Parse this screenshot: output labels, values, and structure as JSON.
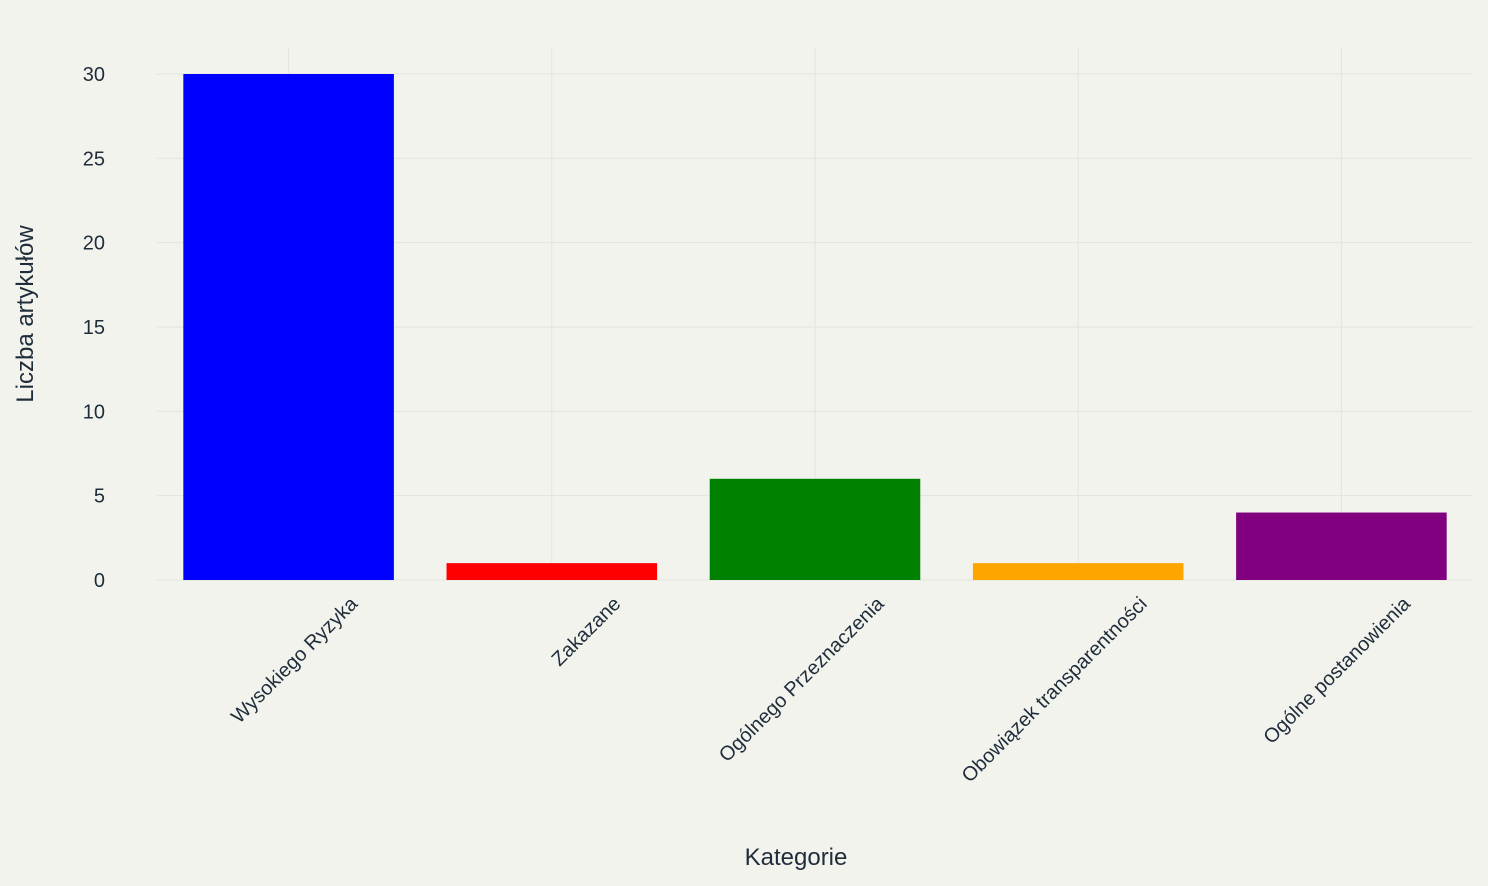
{
  "chart_data": {
    "type": "bar",
    "categories": [
      "Wysokiego Ryzyka",
      "Zakazane",
      "Ogólnego Przeznaczenia",
      "Obowiązek transparentności",
      "Ogólne postanowienia"
    ],
    "values": [
      30,
      1,
      6,
      1,
      4
    ],
    "colors": [
      "#0000ff",
      "#ff0000",
      "#008000",
      "#ffa500",
      "#800080"
    ],
    "title": "",
    "xlabel": "Kategorie",
    "ylabel": "Liczba artykułów",
    "ylim": [
      0,
      31.5
    ],
    "yticks": [
      0,
      5,
      10,
      15,
      20,
      25,
      30
    ],
    "grid": true,
    "legend": "none",
    "background": "#f3f3ee",
    "grid_color": "#e3e3df"
  }
}
